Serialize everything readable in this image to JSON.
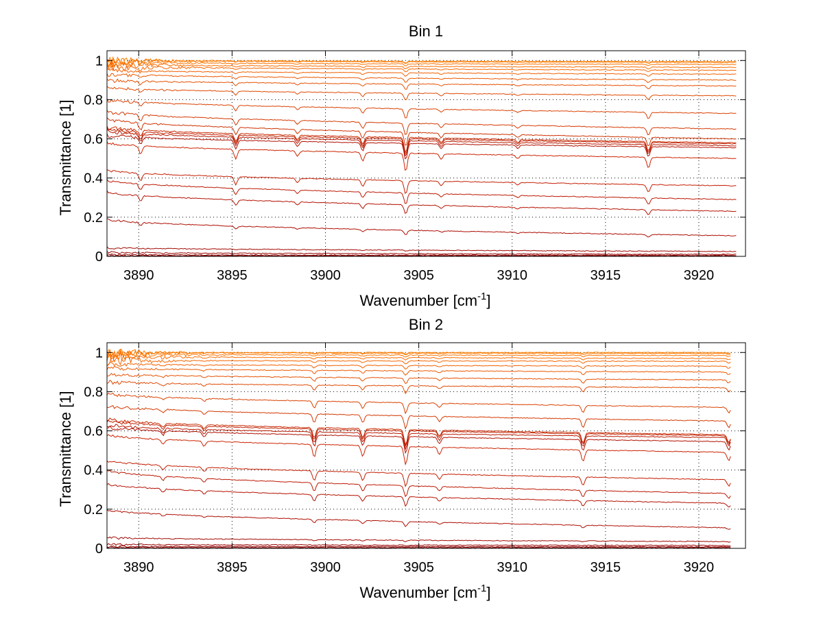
{
  "chart_data": [
    {
      "type": "line",
      "title": "Bin 1",
      "xlabel": "Wavenumber [cm",
      "xlabel_sup": "-1",
      "xlabel_tail": "]",
      "ylabel": "Transmittance [1]",
      "xlim": [
        3888.3,
        3922.5
      ],
      "ylim": [
        0,
        1.05
      ],
      "xticks": [
        3890,
        3895,
        3900,
        3905,
        3910,
        3915,
        3920
      ],
      "xtick_labels": [
        "3890",
        "3895",
        "3900",
        "3905",
        "3910",
        "3915",
        "3920"
      ],
      "yticks": [
        0,
        0.2,
        0.4,
        0.6,
        0.8,
        1
      ],
      "ytick_labels": [
        "0",
        "0.2",
        "0.4",
        "0.6",
        "0.8",
        "1"
      ],
      "grid": true,
      "x_range_data": [
        3888.3,
        3922.0
      ],
      "absorption_lines": [
        {
          "x": 3890.1,
          "depth": 0.5
        },
        {
          "x": 3895.2,
          "depth": 0.55
        },
        {
          "x": 3898.5,
          "depth": 0.3
        },
        {
          "x": 3902.0,
          "depth": 0.5
        },
        {
          "x": 3904.3,
          "depth": 1.0
        },
        {
          "x": 3906.2,
          "depth": 0.3
        },
        {
          "x": 3910.3,
          "depth": 0.2
        },
        {
          "x": 3917.3,
          "depth": 0.6
        }
      ],
      "series_levels": [
        {
          "start": 1.0,
          "end": 0.995,
          "color": "#ff8000"
        },
        {
          "start": 1.0,
          "end": 0.99,
          "color": "#ff7a00"
        },
        {
          "start": 0.99,
          "end": 0.98,
          "color": "#ff7400"
        },
        {
          "start": 0.98,
          "end": 0.965,
          "color": "#fb6d00"
        },
        {
          "start": 0.97,
          "end": 0.95,
          "color": "#f66600"
        },
        {
          "start": 0.95,
          "end": 0.93,
          "color": "#f26000"
        },
        {
          "start": 0.93,
          "end": 0.9,
          "color": "#ec5800"
        },
        {
          "start": 0.9,
          "end": 0.87,
          "color": "#e65000"
        },
        {
          "start": 0.86,
          "end": 0.82,
          "color": "#e04800"
        },
        {
          "start": 0.8,
          "end": 0.73,
          "color": "#da4000"
        },
        {
          "start": 0.74,
          "end": 0.65,
          "color": "#d43800"
        },
        {
          "start": 0.7,
          "end": 0.6,
          "color": "#ce3000"
        },
        {
          "start": 0.66,
          "end": 0.58,
          "color": "#c82800"
        },
        {
          "start": 0.65,
          "end": 0.575,
          "color": "#c02000"
        },
        {
          "start": 0.64,
          "end": 0.565,
          "color": "#b81800"
        },
        {
          "start": 0.62,
          "end": 0.555,
          "color": "#b01000"
        },
        {
          "start": 0.58,
          "end": 0.5,
          "color": "#cc2200"
        },
        {
          "start": 0.44,
          "end": 0.36,
          "color": "#c41c00"
        },
        {
          "start": 0.39,
          "end": 0.29,
          "color": "#bc1600"
        },
        {
          "start": 0.33,
          "end": 0.23,
          "color": "#b41000"
        },
        {
          "start": 0.19,
          "end": 0.105,
          "color": "#ac0c00"
        },
        {
          "start": 0.045,
          "end": 0.025,
          "color": "#a00800"
        },
        {
          "start": 0.02,
          "end": 0.01,
          "color": "#980400"
        },
        {
          "start": 0.008,
          "end": 0.005,
          "color": "#900000"
        },
        {
          "start": 0.003,
          "end": 0.002,
          "color": "#880000"
        }
      ]
    },
    {
      "type": "line",
      "title": "Bin 2",
      "xlabel": "Wavenumber [cm",
      "xlabel_sup": "-1",
      "xlabel_tail": "]",
      "ylabel": "Transmittance [1]",
      "xlim": [
        3888.3,
        3922.5
      ],
      "ylim": [
        0,
        1.05
      ],
      "xticks": [
        3890,
        3895,
        3900,
        3905,
        3910,
        3915,
        3920
      ],
      "xtick_labels": [
        "3890",
        "3895",
        "3900",
        "3905",
        "3910",
        "3915",
        "3920"
      ],
      "yticks": [
        0,
        0.2,
        0.4,
        0.6,
        0.8,
        1
      ],
      "ytick_labels": [
        "0",
        "0.2",
        "0.4",
        "0.6",
        "0.8",
        "1"
      ],
      "grid": true,
      "x_range_data": [
        3888.3,
        3921.7
      ],
      "absorption_lines": [
        {
          "x": 3891.3,
          "depth": 0.3
        },
        {
          "x": 3893.5,
          "depth": 0.3
        },
        {
          "x": 3899.4,
          "depth": 0.7
        },
        {
          "x": 3902.0,
          "depth": 0.6
        },
        {
          "x": 3904.3,
          "depth": 1.0
        },
        {
          "x": 3906.1,
          "depth": 0.4
        },
        {
          "x": 3913.8,
          "depth": 0.65
        },
        {
          "x": 3921.6,
          "depth": 0.5
        }
      ],
      "series_levels": [
        {
          "start": 1.0,
          "end": 1.0,
          "color": "#ff8000"
        },
        {
          "start": 1.0,
          "end": 0.995,
          "color": "#ff7a00"
        },
        {
          "start": 0.99,
          "end": 0.985,
          "color": "#ff7400"
        },
        {
          "start": 0.98,
          "end": 0.97,
          "color": "#fb6d00"
        },
        {
          "start": 0.96,
          "end": 0.955,
          "color": "#f66600"
        },
        {
          "start": 0.94,
          "end": 0.93,
          "color": "#f26000"
        },
        {
          "start": 0.92,
          "end": 0.9,
          "color": "#ec5800"
        },
        {
          "start": 0.89,
          "end": 0.86,
          "color": "#e65000"
        },
        {
          "start": 0.85,
          "end": 0.82,
          "color": "#e04800"
        },
        {
          "start": 0.79,
          "end": 0.72,
          "color": "#da4000"
        },
        {
          "start": 0.73,
          "end": 0.65,
          "color": "#d43800"
        },
        {
          "start": 0.66,
          "end": 0.58,
          "color": "#c82800"
        },
        {
          "start": 0.65,
          "end": 0.575,
          "color": "#c02000"
        },
        {
          "start": 0.63,
          "end": 0.565,
          "color": "#b81800"
        },
        {
          "start": 0.62,
          "end": 0.545,
          "color": "#b01000"
        },
        {
          "start": 0.58,
          "end": 0.49,
          "color": "#cc2200"
        },
        {
          "start": 0.45,
          "end": 0.35,
          "color": "#c41c00"
        },
        {
          "start": 0.4,
          "end": 0.28,
          "color": "#bc1600"
        },
        {
          "start": 0.33,
          "end": 0.23,
          "color": "#b41000"
        },
        {
          "start": 0.2,
          "end": 0.105,
          "color": "#ac0c00"
        },
        {
          "start": 0.055,
          "end": 0.035,
          "color": "#a00800"
        },
        {
          "start": 0.02,
          "end": 0.015,
          "color": "#980400"
        },
        {
          "start": 0.01,
          "end": 0.008,
          "color": "#900000"
        },
        {
          "start": 0.004,
          "end": 0.004,
          "color": "#880000"
        }
      ]
    }
  ]
}
